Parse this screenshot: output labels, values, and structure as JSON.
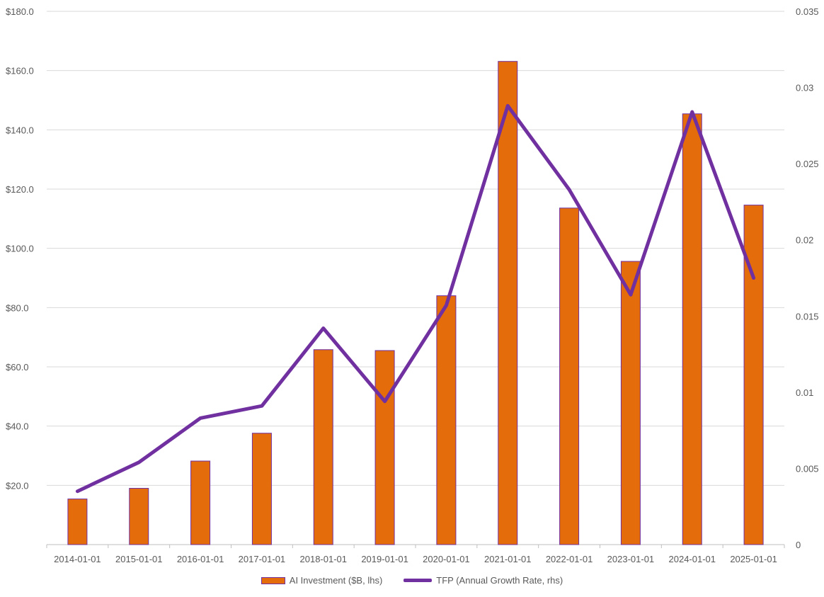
{
  "chart_data": {
    "type": "bar",
    "categories": [
      "2014-01-01",
      "2015-01-01",
      "2016-01-01",
      "2017-01-01",
      "2018-01-01",
      "2019-01-01",
      "2020-01-01",
      "2021-01-01",
      "2022-01-01",
      "2023-01-01",
      "2024-01-01",
      "2025-01-01"
    ],
    "series": [
      {
        "name": "AI Investment ($B, lhs)",
        "type": "bar",
        "axis": "left",
        "values": [
          15.4,
          19.0,
          28.2,
          37.6,
          65.8,
          65.5,
          84.0,
          163.1,
          113.6,
          95.6,
          145.4,
          114.6
        ]
      },
      {
        "name": "TFP (Annual Growth Rate, rhs)",
        "type": "line",
        "axis": "right",
        "values": [
          0.0035,
          0.0054,
          0.0083,
          0.0091,
          0.0142,
          0.0094,
          0.0157,
          0.0288,
          0.0233,
          0.0164,
          0.0284,
          0.0175
        ]
      }
    ],
    "left_axis": {
      "ylim": [
        0,
        180
      ],
      "ticks": [
        20,
        40,
        60,
        80,
        100,
        120,
        140,
        160,
        180
      ],
      "tick_labels": [
        "$20.0",
        "$40.0",
        "$60.0",
        "$80.0",
        "$100.0",
        "$120.0",
        "$140.0",
        "$160.0",
        "$180.0"
      ]
    },
    "right_axis": {
      "ylim": [
        0,
        0.035
      ],
      "ticks": [
        0,
        0.005,
        0.01,
        0.015,
        0.02,
        0.025,
        0.03,
        0.035
      ],
      "tick_labels": [
        "0",
        "0.005",
        "0.01",
        "0.015",
        "0.02",
        "0.025",
        "0.03",
        "0.035"
      ]
    },
    "grid": true,
    "legend_position": "bottom",
    "colors": {
      "bar_fill": "#e46c0a",
      "bar_stroke": "#7030a0",
      "line": "#7030a0",
      "grid": "#d9d9d9",
      "axis": "#bfbfbf"
    }
  }
}
